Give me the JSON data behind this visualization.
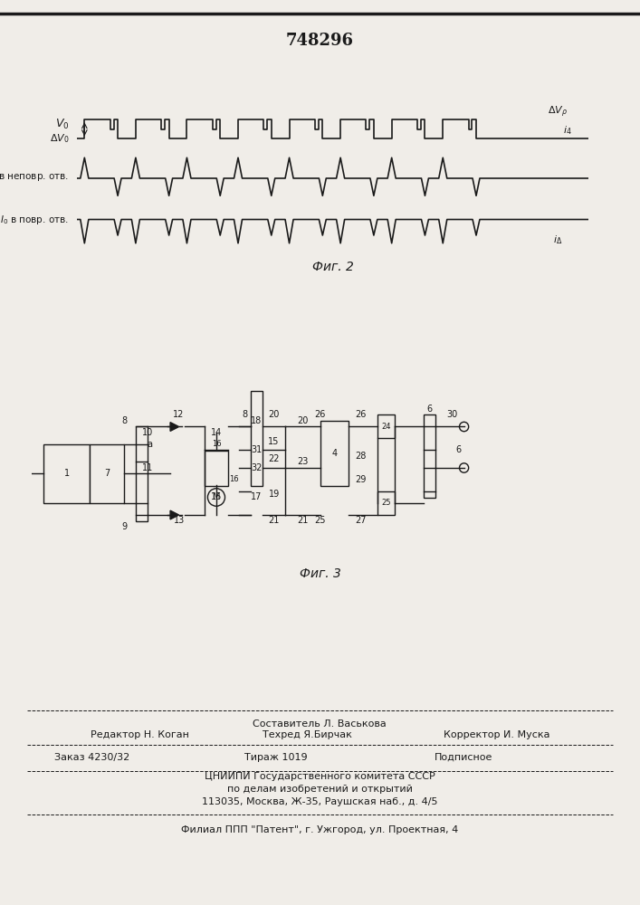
{
  "patent_number": "748296",
  "fig2_caption": "Фиг. 2",
  "fig3_caption": "Фиг. 3",
  "footer_line1_left": "Редактор Н. Коган",
  "footer_line1_center": "Составитель Л. Васькова\nТехред Я.Бирчак",
  "footer_line1_right": "Корректор И. Муска",
  "footer_line2": "Заказ 4230/32        Тираж 1019               Подписное",
  "footer_line3": "ЦНИИПИ Государственного комитета СССР",
  "footer_line4": "по делам изобретений и открытий",
  "footer_line5": "113035, Москва, Ж-35, Раушская наб., д. 4/5",
  "footer_line6": "Филиал ППП \"Патент\", г. Ужгород, ул. Проектная, 4",
  "bg_color": "#f0ede8",
  "text_color": "#1a1a1a",
  "line_color": "#1a1a1a"
}
